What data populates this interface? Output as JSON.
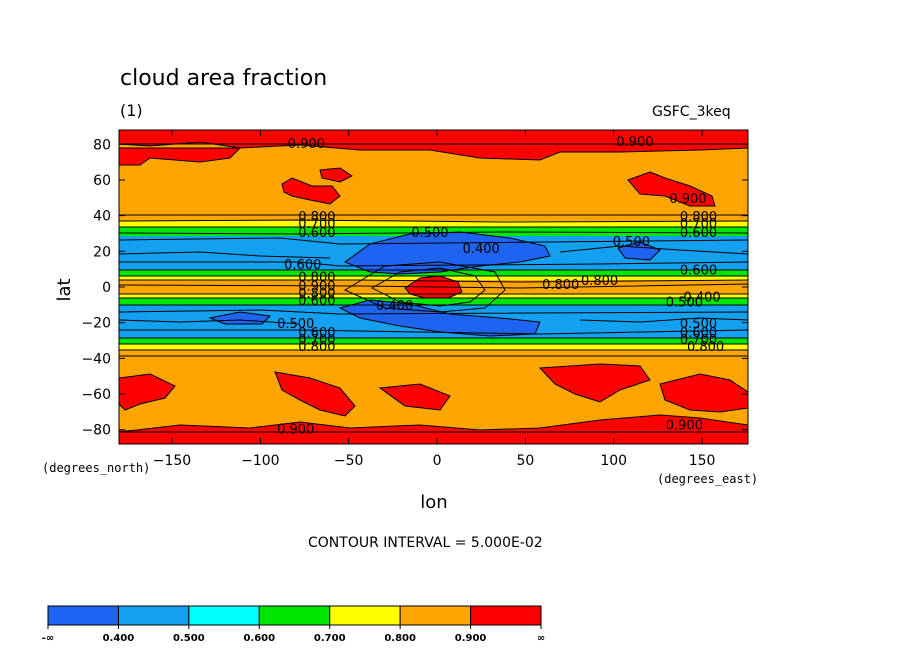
{
  "chart_data": {
    "type": "heatmap",
    "title": "cloud area fraction",
    "subtitle": "(1)",
    "dataset": "GSFC_3keq",
    "xlabel": "lon",
    "ylabel": "lat",
    "x_units": "(degrees_east)",
    "y_units": "(degrees_north)",
    "xlim": [
      -180,
      176
    ],
    "ylim": [
      -88,
      88
    ],
    "x_ticks": [
      -150,
      -100,
      -50,
      0,
      50,
      100,
      150
    ],
    "y_ticks": [
      80,
      60,
      40,
      20,
      0,
      -20,
      -40,
      -60,
      -80
    ],
    "contour_interval_text": "CONTOUR INTERVAL = 5.000E-02",
    "colorbar": {
      "labels": [
        "-∞",
        "0.400",
        "0.500",
        "0.600",
        "0.700",
        "0.800",
        "0.900",
        "∞"
      ],
      "colors": [
        "#1e64f0",
        "#14a0f0",
        "#00ffff",
        "#00e600",
        "#ffff00",
        "#ffa500",
        "#ff0000"
      ]
    },
    "zonal_bands": [
      {
        "lat_max": 88,
        "lat_min": 80,
        "value": "0.900+"
      },
      {
        "lat_max": 80,
        "lat_min": 40,
        "value": "0.800-0.900"
      },
      {
        "lat_max": 40,
        "lat_min": 32,
        "value": "0.700-0.800"
      },
      {
        "lat_max": 32,
        "lat_min": 27,
        "value": "0.600-0.700"
      },
      {
        "lat_max": 27,
        "lat_min": 10,
        "value": "0.400-0.600"
      },
      {
        "lat_max": 10,
        "lat_min": -4,
        "value": "0.600-0.900"
      },
      {
        "lat_max": -4,
        "lat_min": -27,
        "value": "0.400-0.600"
      },
      {
        "lat_max": -27,
        "lat_min": -40,
        "value": "0.600-0.800"
      },
      {
        "lat_max": -40,
        "lat_min": -80,
        "value": "0.800-0.900"
      },
      {
        "lat_max": -80,
        "lat_min": -88,
        "value": "0.900+"
      }
    ],
    "contour_labels": [
      {
        "text": "0.900",
        "lon": -74,
        "lat": 78
      },
      {
        "text": "0.900",
        "lon": 112,
        "lat": 79
      },
      {
        "text": "0.900",
        "lon": 142,
        "lat": 47
      },
      {
        "text": "0.800",
        "lon": -68,
        "lat": 37
      },
      {
        "text": "0.800",
        "lon": 148,
        "lat": 37
      },
      {
        "text": "0.700",
        "lon": -68,
        "lat": 33
      },
      {
        "text": "0.700",
        "lon": 148,
        "lat": 33
      },
      {
        "text": "0.600",
        "lon": -68,
        "lat": 28
      },
      {
        "text": "0.600",
        "lon": 148,
        "lat": 28
      },
      {
        "text": "0.500",
        "lon": -4,
        "lat": 28
      },
      {
        "text": "0.400",
        "lon": 25,
        "lat": 19
      },
      {
        "text": "0.500",
        "lon": 110,
        "lat": 23
      },
      {
        "text": "0.600",
        "lon": -76,
        "lat": 10
      },
      {
        "text": "0.800",
        "lon": 70,
        "lat": -1
      },
      {
        "text": "0.800",
        "lon": 92,
        "lat": 1
      },
      {
        "text": "0.600",
        "lon": 148,
        "lat": 7
      },
      {
        "text": "0.800",
        "lon": -68,
        "lat": 3
      },
      {
        "text": "0.900",
        "lon": -68,
        "lat": -2
      },
      {
        "text": "0.800",
        "lon": -68,
        "lat": -6
      },
      {
        "text": "0.600",
        "lon": -68,
        "lat": -10
      },
      {
        "text": "0.400",
        "lon": -24,
        "lat": -13
      },
      {
        "text": "0.400",
        "lon": 150,
        "lat": -8
      },
      {
        "text": "0.500",
        "lon": 140,
        "lat": -11
      },
      {
        "text": "0.500",
        "lon": -80,
        "lat": -23
      },
      {
        "text": "0.500",
        "lon": 148,
        "lat": -23
      },
      {
        "text": "0.600",
        "lon": -68,
        "lat": -28
      },
      {
        "text": "0.600",
        "lon": 148,
        "lat": -28
      },
      {
        "text": "0.700",
        "lon": -68,
        "lat": -32
      },
      {
        "text": "0.700",
        "lon": 148,
        "lat": -32
      },
      {
        "text": "0.800",
        "lon": -68,
        "lat": -36
      },
      {
        "text": "0.800",
        "lon": 152,
        "lat": -36
      },
      {
        "text": "0.900",
        "lon": -80,
        "lat": -82
      },
      {
        "text": "0.900",
        "lon": 140,
        "lat": -80
      }
    ]
  }
}
